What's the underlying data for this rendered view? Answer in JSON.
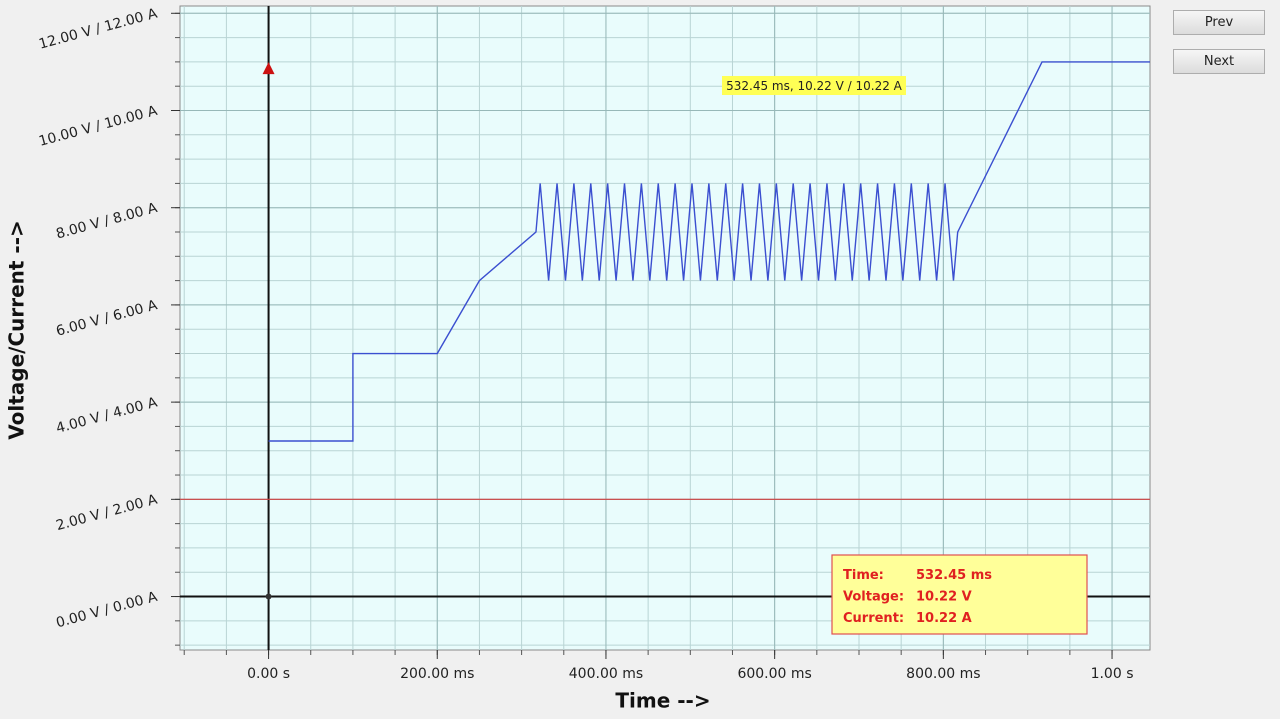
{
  "chart_data": {
    "type": "line",
    "x_label": "Time -->",
    "y_label": "Voltage/Current -->",
    "xlim": [
      -105,
      1045
    ],
    "ylim": [
      -1.1,
      12.15
    ],
    "xticks": [
      {
        "value": 0,
        "label": "0.00 s"
      },
      {
        "value": 200,
        "label": "200.00 ms"
      },
      {
        "value": 400,
        "label": "400.00 ms"
      },
      {
        "value": 600,
        "label": "600.00 ms"
      },
      {
        "value": 800,
        "label": "800.00 ms"
      },
      {
        "value": 1000,
        "label": "1.00 s"
      }
    ],
    "yticks": [
      {
        "value": 0,
        "label": "0.00 V / 0.00 A"
      },
      {
        "value": 2,
        "label": "2.00 V / 2.00 A"
      },
      {
        "value": 4,
        "label": "4.00 V / 4.00 A"
      },
      {
        "value": 6,
        "label": "6.00 V / 6.00 A"
      },
      {
        "value": 8,
        "label": "8.00 V / 8.00 A"
      },
      {
        "value": 10,
        "label": "10.00 V / 10.00 A"
      },
      {
        "value": 12,
        "label": "12.00 V / 12.00 A"
      }
    ],
    "grid": true,
    "color": "#3b4fd0",
    "x": [
      0,
      100,
      100,
      200,
      250,
      317,
      322,
      332,
      342,
      352,
      362,
      372,
      382,
      392,
      402,
      412,
      422,
      432,
      442,
      452,
      462,
      472,
      482,
      492,
      502,
      512,
      522,
      532,
      542,
      552,
      562,
      572,
      582,
      592,
      602,
      612,
      622,
      632,
      642,
      652,
      662,
      672,
      682,
      692,
      702,
      712,
      722,
      732,
      742,
      752,
      762,
      772,
      782,
      792,
      802,
      812,
      817,
      917,
      1045
    ],
    "values": [
      3.2,
      3.2,
      5.0,
      5.0,
      6.5,
      7.5,
      8.5,
      6.5,
      8.5,
      6.5,
      8.5,
      6.5,
      8.5,
      6.5,
      8.5,
      6.5,
      8.5,
      6.5,
      8.5,
      6.5,
      8.5,
      6.5,
      8.5,
      6.5,
      8.5,
      6.5,
      8.5,
      6.5,
      8.5,
      6.5,
      8.5,
      6.5,
      8.5,
      6.5,
      8.5,
      6.5,
      8.5,
      6.5,
      8.5,
      6.5,
      8.5,
      6.5,
      8.5,
      6.5,
      8.5,
      6.5,
      8.5,
      6.5,
      8.5,
      6.5,
      8.5,
      6.5,
      8.5,
      6.5,
      8.5,
      6.5,
      7.5,
      11.0,
      11.0
    ],
    "threshold": 2,
    "threshold_color": "#d04040",
    "marker": {
      "x": 0,
      "y": 10.85,
      "color": "#cc1111"
    },
    "tooltip": "532.45 ms, 10.22 V / 10.22 A",
    "info": [
      [
        "Time:",
        "532.45 ms"
      ],
      [
        "Voltage:",
        "10.22 V"
      ],
      [
        "Current:",
        "10.22 A"
      ]
    ]
  },
  "buttons": [
    "Prev",
    "Next"
  ]
}
